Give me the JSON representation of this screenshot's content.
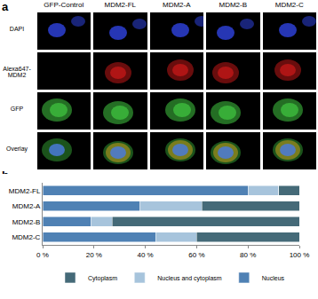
{
  "panel_a": {
    "label": "a",
    "columns": [
      "GFP-Control",
      "MDM2-FL",
      "MDM2-A",
      "MDM2-B",
      "MDM2-C"
    ],
    "rows": [
      "DAPI",
      "Alexa647-MDM2",
      "GFP",
      "Overlay"
    ]
  },
  "panel_b": {
    "label": "b"
  },
  "chart_data": {
    "type": "bar",
    "orientation": "horizontal",
    "stacked": true,
    "categories": [
      "MDM2-FL",
      "MDM2-A",
      "MDM2-B",
      "MDM2-C"
    ],
    "series": [
      {
        "name": "Nucleus",
        "color": "#4f81b4",
        "values": [
          80,
          38,
          19,
          44
        ]
      },
      {
        "name": "Nucleus and cytoplasm",
        "color": "#a7c4dc",
        "values": [
          12,
          24,
          8,
          16
        ]
      },
      {
        "name": "Cytoplasm",
        "color": "#456a78",
        "values": [
          8,
          38,
          73,
          40
        ]
      }
    ],
    "xlim": [
      0,
      100
    ],
    "xticks": [
      {
        "value": 0,
        "label": "0 %"
      },
      {
        "value": 20,
        "label": "20 %"
      },
      {
        "value": 40,
        "label": "40 %"
      },
      {
        "value": 60,
        "label": "60 %"
      },
      {
        "value": 80,
        "label": "80 %"
      },
      {
        "value": 100,
        "label": "100 %"
      }
    ],
    "legend": "bottom",
    "grid": false
  }
}
